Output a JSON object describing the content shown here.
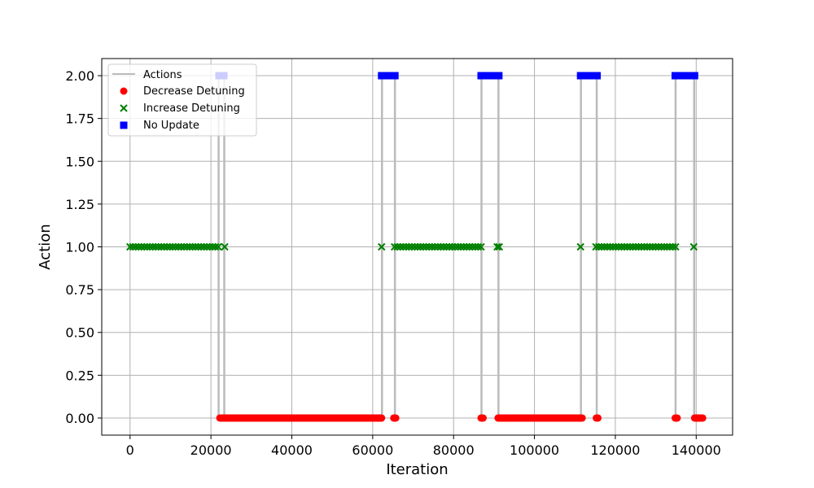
{
  "chart_data": {
    "type": "scatter",
    "title": "",
    "xlabel": "Iteration",
    "ylabel": "Action",
    "xlim": [
      -7000,
      149000
    ],
    "ylim": [
      -0.1,
      2.1
    ],
    "xticks": [
      0,
      20000,
      40000,
      60000,
      80000,
      100000,
      120000,
      140000
    ],
    "yticks": [
      0.0,
      0.25,
      0.5,
      0.75,
      1.0,
      1.25,
      1.5,
      1.75,
      2.0
    ],
    "xtick_labels": [
      "0",
      "20000",
      "40000",
      "60000",
      "80000",
      "100000",
      "120000",
      "140000"
    ],
    "ytick_labels": [
      "0.00",
      "0.25",
      "0.50",
      "0.75",
      "1.00",
      "1.25",
      "1.50",
      "1.75",
      "2.00"
    ],
    "grid": true,
    "legend_position": "top-left",
    "series": [
      {
        "name": "Actions",
        "kind": "line",
        "color": "#bbbbbb"
      },
      {
        "name": "Decrease Detuning",
        "kind": "scatter",
        "marker": "circle",
        "color": "#ff0000",
        "y": 0
      },
      {
        "name": "Increase Detuning",
        "kind": "scatter",
        "marker": "x",
        "color": "#008000",
        "y": 1
      },
      {
        "name": "No Update",
        "kind": "scatter",
        "marker": "square",
        "color": "#0000ff",
        "y": 2
      }
    ],
    "segments": [
      {
        "action": 1,
        "start": 0,
        "end": 21800
      },
      {
        "action": 2,
        "start": 22000,
        "end": 23200
      },
      {
        "action": 1,
        "start": 23400,
        "end": 23400
      },
      {
        "action": 0,
        "start": 22200,
        "end": 62200
      },
      {
        "action": 1,
        "start": 62200,
        "end": 62200
      },
      {
        "action": 2,
        "start": 62200,
        "end": 65500
      },
      {
        "action": 0,
        "start": 65200,
        "end": 65700
      },
      {
        "action": 1,
        "start": 65400,
        "end": 86800
      },
      {
        "action": 2,
        "start": 86800,
        "end": 91200
      },
      {
        "action": 0,
        "start": 86800,
        "end": 87300
      },
      {
        "action": 1,
        "start": 90800,
        "end": 91300
      },
      {
        "action": 0,
        "start": 91000,
        "end": 111800
      },
      {
        "action": 1,
        "start": 111400,
        "end": 111600
      },
      {
        "action": 2,
        "start": 111400,
        "end": 115500
      },
      {
        "action": 0,
        "start": 115300,
        "end": 115700
      },
      {
        "action": 1,
        "start": 115200,
        "end": 134900
      },
      {
        "action": 2,
        "start": 134800,
        "end": 139600
      },
      {
        "action": 0,
        "start": 134800,
        "end": 135300
      },
      {
        "action": 1,
        "start": 139400,
        "end": 139700
      },
      {
        "action": 0,
        "start": 139600,
        "end": 141600
      }
    ],
    "transitions": [
      21900,
      23300,
      62300,
      65500,
      86900,
      91100,
      111500,
      115400,
      134900,
      139500
    ]
  }
}
